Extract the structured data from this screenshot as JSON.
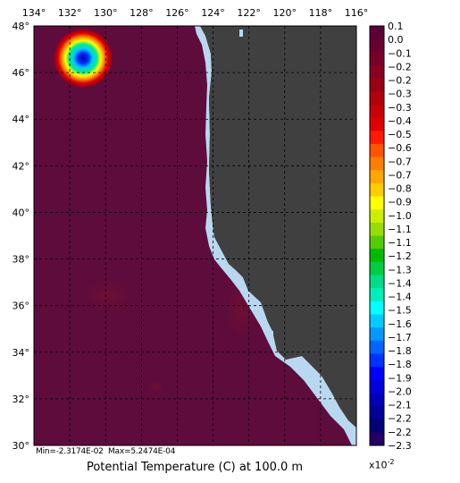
{
  "title": "Potential Temperature (C) at 100.0 m",
  "stats": {
    "min_label": "Min=",
    "min_value": "-2.3174E-02",
    "max_label": "Max=",
    "max_value": "5.2474E-04"
  },
  "lon_ticks": [
    "134°",
    "132°",
    "130°",
    "128°",
    "126°",
    "124°",
    "122°",
    "120°",
    "118°",
    "116°"
  ],
  "lat_ticks": [
    "48°",
    "46°",
    "44°",
    "42°",
    "40°",
    "38°",
    "36°",
    "34°",
    "32°",
    "30°"
  ],
  "colorbar": {
    "exponent": "x10",
    "exponent_power": "-2",
    "labels": [
      "0.1",
      "0.0",
      "−0.1",
      "−0.2",
      "−0.2",
      "−0.3",
      "−0.3",
      "−0.4",
      "−0.5",
      "−0.6",
      "−0.7",
      "−0.7",
      "−0.8",
      "−0.9",
      "−1.0",
      "−1.1",
      "−1.1",
      "−1.2",
      "−1.3",
      "−1.4",
      "−1.4",
      "−1.5",
      "−1.6",
      "−1.7",
      "−1.8",
      "−1.8",
      "−1.9",
      "−2.0",
      "−2.1",
      "−2.2",
      "−2.2",
      "−2.3"
    ],
    "colors": [
      "#5c0035",
      "#6a0030",
      "#7a0028",
      "#8a0020",
      "#9a0016",
      "#b0000c",
      "#c80008",
      "#e00000",
      "#ff1a00",
      "#ff5500",
      "#ff7f00",
      "#ffa600",
      "#ffcc00",
      "#ffff00",
      "#ccee00",
      "#99dd00",
      "#55cc00",
      "#00bb00",
      "#00cc44",
      "#00dd88",
      "#00eebb",
      "#00ffff",
      "#00ccff",
      "#0099ff",
      "#0066ff",
      "#0033ff",
      "#0000ff",
      "#0000dd",
      "#0000bb",
      "#000099",
      "#000077",
      "#220066"
    ]
  },
  "map_colors": {
    "ocean": "#5e0c3c",
    "land": "#404040",
    "coast": "#b8d8f0",
    "grid": "#000000"
  }
}
